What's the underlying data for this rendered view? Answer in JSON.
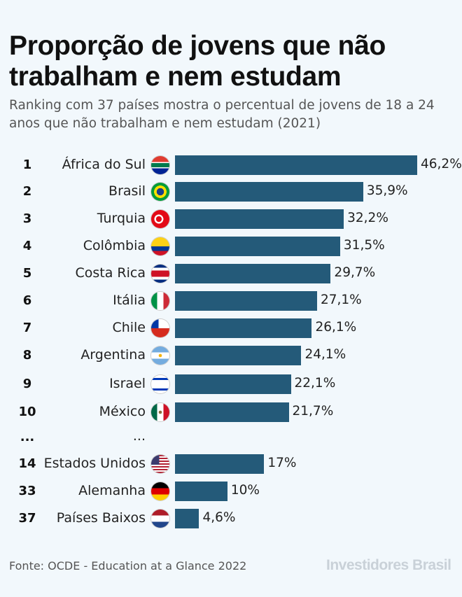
{
  "title": "Proporção de jovens que não trabalham e nem estudam",
  "subtitle": "Ranking com 37 países mostra o percentual de jovens de 18 a 24 anos que não trabalham e nem estudam (2021)",
  "source": "Fonte: OCDE - Education at a Glance 2022",
  "brand": "Investidores Brasil",
  "colors": {
    "bar": "#245a79",
    "background": "#f2f8fc"
  },
  "chart_data": {
    "type": "bar",
    "orientation": "horizontal",
    "title": "Proporção de jovens que não trabalham e nem estudam",
    "unit": "%",
    "ellipsis": {
      "rank": "...",
      "name": "..."
    },
    "rows": [
      {
        "rank": "1",
        "name": "África do Sul",
        "value": 46.2,
        "label": "46,2%",
        "flag": "south-africa-flag-icon"
      },
      {
        "rank": "2",
        "name": "Brasil",
        "value": 35.9,
        "label": "35,9%",
        "flag": "brazil-flag-icon"
      },
      {
        "rank": "3",
        "name": "Turquia",
        "value": 32.2,
        "label": "32,2%",
        "flag": "turkey-flag-icon"
      },
      {
        "rank": "4",
        "name": "Colômbia",
        "value": 31.5,
        "label": "31,5%",
        "flag": "colombia-flag-icon"
      },
      {
        "rank": "5",
        "name": "Costa Rica",
        "value": 29.7,
        "label": "29,7%",
        "flag": "costa-rica-flag-icon"
      },
      {
        "rank": "6",
        "name": "Itália",
        "value": 27.1,
        "label": "27,1%",
        "flag": "italy-flag-icon"
      },
      {
        "rank": "7",
        "name": "Chile",
        "value": 26.1,
        "label": "26,1%",
        "flag": "chile-flag-icon"
      },
      {
        "rank": "8",
        "name": "Argentina",
        "value": 24.1,
        "label": "24,1%",
        "flag": "argentina-flag-icon"
      },
      {
        "rank": "9",
        "name": "Israel",
        "value": 22.1,
        "label": "22,1%",
        "flag": "israel-flag-icon"
      },
      {
        "rank": "10",
        "name": "México",
        "value": 21.7,
        "label": "21,7%",
        "flag": "mexico-flag-icon"
      },
      {
        "rank": "14",
        "name": "Estados Unidos",
        "value": 17,
        "label": "17%",
        "flag": "usa-flag-icon"
      },
      {
        "rank": "33",
        "name": "Alemanha",
        "value": 10,
        "label": "10%",
        "flag": "germany-flag-icon"
      },
      {
        "rank": "37",
        "name": "Países Baixos",
        "value": 4.6,
        "label": "4,6%",
        "flag": "netherlands-flag-icon"
      }
    ]
  }
}
